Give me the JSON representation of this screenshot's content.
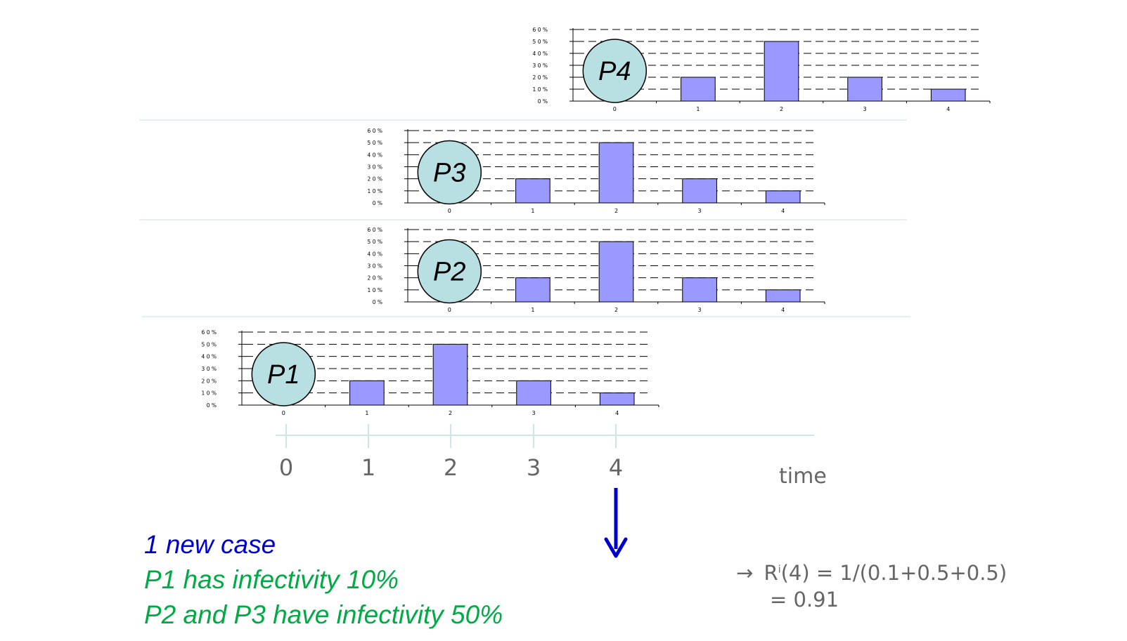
{
  "chart_data": [
    {
      "type": "bar",
      "label": "P4",
      "categories": [
        "0",
        "1",
        "2",
        "3",
        "4"
      ],
      "values": [
        0,
        20,
        50,
        20,
        10
      ],
      "ylim": [
        0,
        60
      ],
      "yticks": [
        "6 0 %",
        "5 0 %",
        "4 0 %",
        "3 0 %",
        "2 0 %",
        "1 0 %",
        "0 %"
      ],
      "grid": "dashed",
      "bar_color": "#9999ff"
    },
    {
      "type": "bar",
      "label": "P3",
      "categories": [
        "0",
        "1",
        "2",
        "3",
        "4"
      ],
      "values": [
        0,
        20,
        50,
        20,
        10
      ],
      "ylim": [
        0,
        60
      ],
      "yticks": [
        "6 0 %",
        "5 0 %",
        "4 0 %",
        "3 0 %",
        "2 0 %",
        "1 0 %",
        "0 %"
      ],
      "grid": "dashed",
      "bar_color": "#9999ff"
    },
    {
      "type": "bar",
      "label": "P2",
      "categories": [
        "0",
        "1",
        "2",
        "3",
        "4"
      ],
      "values": [
        0,
        20,
        50,
        20,
        10
      ],
      "ylim": [
        0,
        60
      ],
      "yticks": [
        "6 0 %",
        "5 0 %",
        "4 0 %",
        "3 0 %",
        "2 0 %",
        "1 0 %",
        "0 %"
      ],
      "grid": "dashed",
      "bar_color": "#9999ff"
    },
    {
      "type": "bar",
      "label": "P1",
      "categories": [
        "0",
        "1",
        "2",
        "3",
        "4"
      ],
      "values": [
        0,
        20,
        50,
        20,
        10
      ],
      "ylim": [
        0,
        60
      ],
      "yticks": [
        "6 0 %",
        "5 0 %",
        "4 0 %",
        "3 0 %",
        "2 0 %",
        "1 0 %",
        "0 %"
      ],
      "grid": "dashed",
      "bar_color": "#9999ff"
    }
  ],
  "timeline": {
    "ticks": [
      "0",
      "1",
      "2",
      "3",
      "4"
    ],
    "axis_label": "time",
    "color": "#cce6ea",
    "label_color": "#666666"
  },
  "colors": {
    "circle_fill": "#b8dfe2",
    "arrow": "#0000cc"
  },
  "captions": {
    "line1": "1 new case",
    "line2": "P1 has infectivity 10%",
    "line3": "P2 and P3 have infectivity 50%"
  },
  "formula": {
    "arrow": "→",
    "r": "R",
    "sup": "i",
    "line1_rest": "(4) = 1/(0.1+0.5+0.5)",
    "line2": "= 0.91"
  }
}
